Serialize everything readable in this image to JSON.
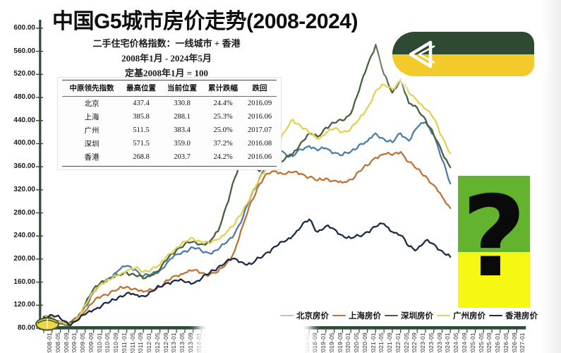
{
  "title": "中国G5城市房价走势(2008-2024)",
  "subtitle_lines": [
    "二手住宅价格指数：一线城市 + 香港",
    "2008年1月 - 2024年5月",
    "定基2008年1月 = 100"
  ],
  "table": {
    "headers": [
      "中原领先指数",
      "最高位置",
      "当前位置",
      "累计跌幅",
      "跌回"
    ],
    "rows": [
      [
        "北京",
        "437.4",
        "330.8",
        "24.4%",
        "2016.09"
      ],
      [
        "上海",
        "385.8",
        "288.1",
        "25.3%",
        "2016.06"
      ],
      [
        "广州",
        "511.5",
        "383.4",
        "25.0%",
        "2017.07"
      ],
      [
        "深圳",
        "571.5",
        "359.0",
        "37.2%",
        "2016.08"
      ],
      [
        "香港",
        "268.8",
        "203.7",
        "24.2%",
        "2016.06"
      ]
    ]
  },
  "chart_data": {
    "type": "line",
    "title": "中国G5城市房价走势(2008-2024)",
    "xlabel": "",
    "ylabel": "",
    "ylim": [
      80,
      600
    ],
    "grid": false,
    "legend_position": "bottom-right",
    "axis_color": "#2f4a38",
    "y_ticks": [
      "600.00",
      "560.00",
      "520.00",
      "480.00",
      "440.00",
      "400.00",
      "360.00",
      "320.00",
      "280.00",
      "240.00",
      "200.00",
      "160.00",
      "120.00",
      "80.00"
    ],
    "x_ticks_shown": [
      "2008-01",
      "2008-05",
      "2008-09",
      "2009-01",
      "2009-05",
      "2009-09",
      "2010-01",
      "2010-05",
      "2010-09",
      "2011-01",
      "2011-05",
      "2011-09",
      "2012-01",
      "2012-05",
      "2012-09",
      "2013-01",
      "2013-05",
      "2013-09",
      "2014-01",
      "2014-05",
      "2014-09",
      "2015-01",
      "2015-05",
      "2015-09",
      "2016-01",
      "2016-05",
      "2016-09",
      "2017-01",
      "2017-05",
      "2017-09",
      "2018-01",
      "2018-05",
      "2018-09",
      "2019-01",
      "2019-05",
      "2019-09",
      "2020-01",
      "2020-05",
      "2020-09",
      "2021-01",
      "2021-05",
      "2021-09",
      "2022-01",
      "2022-05",
      "2022-09",
      "2023-01",
      "2023-05",
      "2023-09",
      "2024-01",
      "2024-05",
      "2024-09",
      "2025-01",
      "2025-05",
      "2025-09",
      "2026-01",
      "2026-05",
      "2026-09",
      "2027-01"
    ],
    "x": [
      "2008-01",
      "2008-05",
      "2008-09",
      "2009-01",
      "2009-05",
      "2009-09",
      "2010-01",
      "2010-05",
      "2010-09",
      "2011-01",
      "2011-05",
      "2011-09",
      "2012-01",
      "2012-05",
      "2012-09",
      "2013-01",
      "2013-05",
      "2013-09",
      "2014-01",
      "2014-05",
      "2014-09",
      "2015-01",
      "2015-05",
      "2015-09",
      "2016-01",
      "2016-05",
      "2016-09",
      "2017-01",
      "2017-05",
      "2017-09",
      "2018-01",
      "2018-05",
      "2018-09",
      "2019-01",
      "2019-05",
      "2019-09",
      "2020-01",
      "2020-05",
      "2020-09",
      "2021-01",
      "2021-05",
      "2021-09",
      "2022-01",
      "2022-05",
      "2022-09",
      "2023-01",
      "2023-05",
      "2023-09",
      "2024-01",
      "2024-05"
    ],
    "series": [
      {
        "name": "北京房价",
        "color": "#4d7ea8",
        "values": [
          100,
          95,
          90,
          88,
          98,
          118,
          142,
          158,
          168,
          180,
          188,
          182,
          170,
          174,
          180,
          196,
          208,
          214,
          220,
          214,
          210,
          216,
          228,
          244,
          272,
          310,
          340,
          372,
          396,
          384,
          378,
          390,
          396,
          388,
          392,
          384,
          380,
          386,
          398,
          404,
          418,
          408,
          402,
          418,
          405,
          428,
          437.4,
          415,
          372,
          330.8
        ]
      },
      {
        "name": "上海房价",
        "color": "#bf7434",
        "values": [
          100,
          97,
          91,
          88,
          96,
          110,
          126,
          136,
          142,
          148,
          152,
          149,
          143,
          147,
          152,
          163,
          171,
          176,
          180,
          176,
          173,
          178,
          192,
          214,
          258,
          300,
          330,
          348,
          352,
          347,
          350,
          348,
          342,
          336,
          340,
          336,
          332,
          338,
          352,
          362,
          376,
          382,
          380,
          385.8,
          368,
          356,
          344,
          328,
          308,
          288.1
        ]
      },
      {
        "name": "深圳房价",
        "color": "#47613c",
        "values": [
          100,
          96,
          88,
          85,
          97,
          122,
          148,
          162,
          166,
          172,
          177,
          172,
          166,
          172,
          182,
          202,
          216,
          226,
          230,
          226,
          230,
          248,
          292,
          340,
          372,
          366,
          352,
          360,
          368,
          372,
          382,
          402,
          418,
          412,
          428,
          436,
          440,
          452,
          492,
          535,
          571.5,
          520,
          488,
          512,
          470,
          462,
          442,
          415,
          385,
          359
        ]
      },
      {
        "name": "广州房价",
        "color": "#e5d054",
        "values": [
          100,
          97,
          90,
          87,
          97,
          120,
          143,
          158,
          164,
          172,
          180,
          184,
          178,
          183,
          190,
          208,
          220,
          230,
          236,
          230,
          227,
          234,
          246,
          260,
          284,
          312,
          338,
          362,
          392,
          420,
          442,
          430,
          418,
          408,
          418,
          426,
          420,
          426,
          442,
          462,
          492,
          502,
          495,
          511.5,
          488,
          475,
          460,
          444,
          412,
          383.4
        ]
      },
      {
        "name": "香港房价",
        "color": "#1d2c44",
        "values": [
          100,
          103,
          97,
          87,
          93,
          104,
          112,
          119,
          126,
          134,
          141,
          138,
          136,
          144,
          152,
          159,
          163,
          160,
          158,
          166,
          176,
          186,
          196,
          201,
          194,
          191,
          202,
          212,
          222,
          230,
          240,
          256,
          268.8,
          247,
          257,
          252,
          241,
          236,
          240,
          247,
          256,
          261,
          247,
          241,
          222,
          217,
          232,
          226,
          214,
          203.7
        ]
      }
    ]
  },
  "decorations": {
    "question_block": {
      "text": "?",
      "top_color": "#63b32e",
      "bottom_color": "#f7f714"
    },
    "brand_pill": {
      "top_color": "#2e4a33",
      "bottom_color": "#f2cb2a",
      "glyph": "back-arrow"
    }
  }
}
